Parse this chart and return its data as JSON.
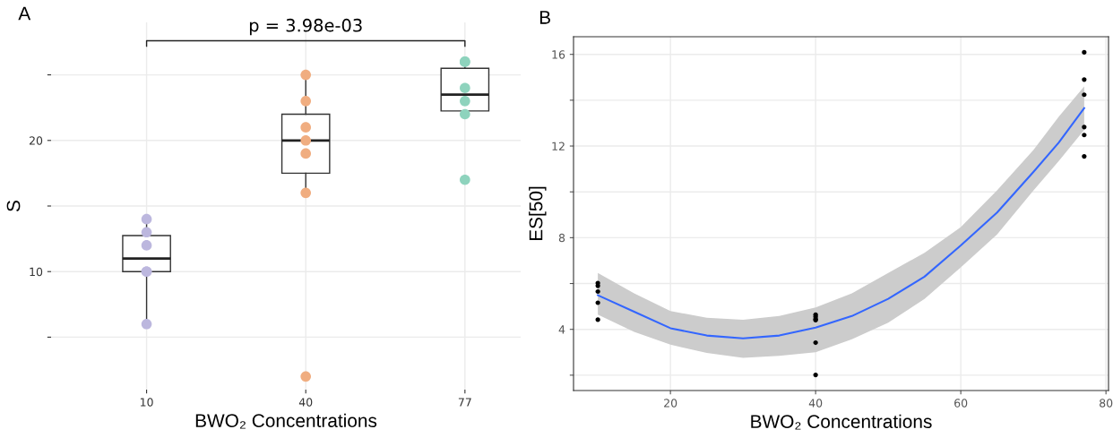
{
  "chart_data": [
    {
      "type": "box",
      "title": "A",
      "xlabel": "BWO₂ Concentrations",
      "ylabel": "S",
      "categories": [
        "10",
        "40",
        "77"
      ],
      "boxes": [
        {
          "low": 6,
          "q1": 10,
          "median": 11,
          "q3": 12.75,
          "high": 14
        },
        {
          "low": 16,
          "q1": 17.5,
          "median": 20,
          "q3": 22,
          "high": 25
        },
        {
          "low": 22,
          "q1": 22.25,
          "median": 23.5,
          "q3": 25.5,
          "high": 26
        }
      ],
      "series": [
        {
          "type": "scatter",
          "marker": "circle",
          "color": "#bcb7de",
          "x": [
            "10",
            "10",
            "10",
            "10",
            "10",
            "10"
          ],
          "values": [
            14,
            13,
            12,
            10,
            10,
            6
          ]
        },
        {
          "type": "scatter",
          "marker": "circle",
          "color": "#f0ad80",
          "x": [
            "40",
            "40",
            "40",
            "40",
            "40",
            "40",
            "40"
          ],
          "values": [
            25,
            23,
            21,
            20,
            19,
            16,
            2
          ]
        },
        {
          "type": "scatter",
          "marker": "circle",
          "color": "#8ed3bd",
          "x": [
            "77",
            "77",
            "77",
            "77",
            "77",
            "77"
          ],
          "values": [
            26,
            26,
            24,
            23,
            22,
            17
          ]
        }
      ],
      "ylim": [
        1,
        29
      ],
      "yticks": [
        {
          "value": 5,
          "label": null
        },
        10,
        {
          "value": 15,
          "label": null
        },
        20,
        {
          "value": 25,
          "label": null
        }
      ],
      "grid": true,
      "annotations": [
        "p = 3.98e-03"
      ]
    },
    {
      "type": "scatter",
      "title": "B",
      "xlabel": "BWO₂ Concentrations",
      "ylabel": "ES[50]",
      "series": [
        {
          "type": "line",
          "color": "#3366ff",
          "x": [
            10,
            15,
            20,
            25,
            30,
            35,
            40,
            45,
            50,
            55,
            60,
            65,
            70,
            73.5,
            77
          ],
          "values": [
            5.49,
            4.77,
            4.05,
            3.73,
            3.61,
            3.73,
            4.08,
            4.58,
            5.33,
            6.3,
            7.66,
            9.1,
            10.87,
            12.15,
            13.65
          ],
          "lower": [
            4.64,
            3.89,
            3.33,
            2.97,
            2.76,
            2.84,
            3.0,
            3.57,
            4.29,
            5.33,
            6.7,
            8.14,
            10.06,
            11.35,
            12.7
          ],
          "upper": [
            6.46,
            5.57,
            4.8,
            4.51,
            4.42,
            4.58,
            4.96,
            5.57,
            6.46,
            7.34,
            8.46,
            10.07,
            11.83,
            13.28,
            14.6
          ]
        },
        {
          "type": "scatter",
          "marker": "circle",
          "color": "#000000",
          "x": [
            10,
            10,
            10,
            10,
            10,
            40,
            40,
            40,
            40,
            40,
            40,
            77,
            77,
            77,
            77,
            77,
            77
          ],
          "values": [
            6.02,
            5.9,
            5.65,
            5.16,
            4.42,
            4.64,
            4.55,
            4.45,
            4.4,
            3.42,
            2.01,
            16.09,
            14.9,
            14.24,
            12.83,
            12.48,
            11.55
          ]
        }
      ],
      "xlim": [
        6.65,
        80.35
      ],
      "xticks": [
        20,
        40,
        60,
        80
      ],
      "ylim": [
        1.33,
        16.77
      ],
      "yticks": [
        {
          "value": 2,
          "label": null
        },
        4,
        {
          "value": 6,
          "label": null
        },
        8,
        {
          "value": 10,
          "label": null
        },
        12,
        {
          "value": 14,
          "label": null
        },
        16
      ],
      "grid": true
    }
  ]
}
